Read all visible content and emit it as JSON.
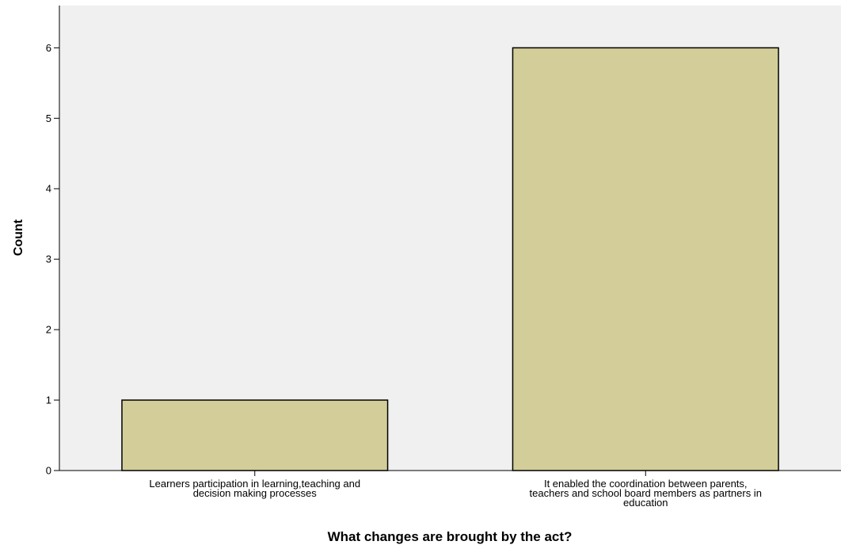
{
  "chart_data": {
    "type": "bar",
    "categories": [
      [
        "Learners participation in learning,teaching and",
        "decision making processes"
      ],
      [
        "It enabled the coordination between parents,",
        "teachers and school board members as partners in",
        "education"
      ]
    ],
    "values": [
      1,
      6
    ],
    "xlabel": "What changes are brought by the act?",
    "ylabel": "Count",
    "ylim": [
      0,
      6.6
    ],
    "yticks": [
      0,
      1,
      2,
      3,
      4,
      5,
      6
    ],
    "grid": false,
    "colors": {
      "bar_fill": "#d3ce99",
      "bar_stroke": "#000000",
      "plot_bg": "#f0f0f0"
    }
  }
}
